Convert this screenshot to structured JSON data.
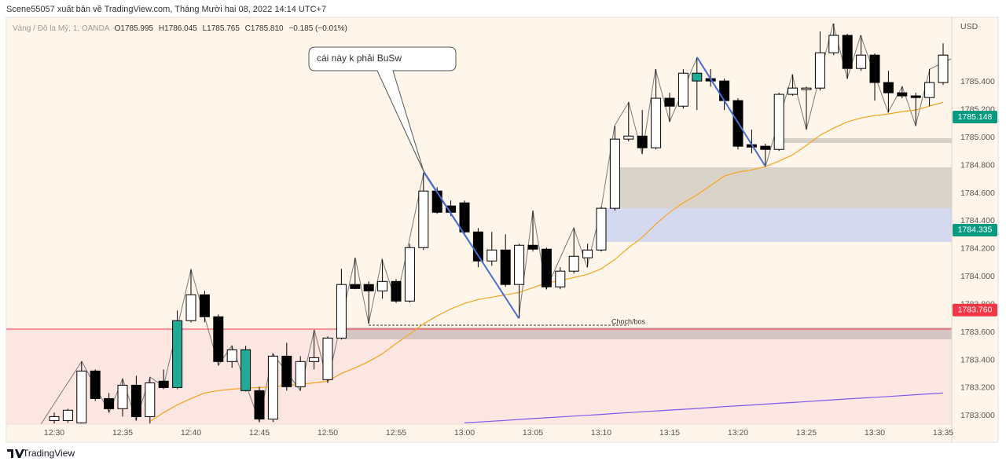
{
  "header": {
    "publisher": "Scene55057 xuất bản về TradingView.com, Tháng Mười hai 08, 2022 14:14 UTC+7"
  },
  "legend": {
    "symbol": "Vàng / Đô la Mỹ, 1, OANDA",
    "values": [
      "O1785.995",
      "H1786.045",
      "L1785.765",
      "C1785.810",
      "−0.185 (−0.01%)"
    ]
  },
  "footer": {
    "brand": "TradingView"
  },
  "chart_data": {
    "type": "candlestick",
    "currency": "USD",
    "annotations": [
      "cái này k phải BuSw",
      "Choch/bos"
    ],
    "grid": false,
    "categories": [
      "12:30",
      null,
      null,
      null,
      null,
      "12:35",
      null,
      null,
      null,
      null,
      "12:40",
      null,
      null,
      null,
      null,
      "12:45",
      null,
      null,
      null,
      null,
      "12:50",
      null,
      null,
      null,
      null,
      "12:55",
      null,
      null,
      null,
      null,
      "13:00",
      null,
      null,
      null,
      null,
      "13:05",
      null,
      null,
      null,
      null,
      "13:10",
      null,
      null,
      null,
      null,
      "13:15",
      null,
      null,
      null,
      null,
      "13:20",
      null,
      null,
      null,
      null,
      "13:25",
      null,
      null,
      null,
      null,
      "13:30",
      null,
      null,
      null,
      null,
      "13:35"
    ],
    "ylim": [
      1782.94,
      1785.865
    ],
    "yticks": [
      {
        "value": 1783.0,
        "label": "1783.000"
      },
      {
        "value": 1783.2,
        "label": "1783.200"
      },
      {
        "value": 1783.4,
        "label": "1783.400"
      },
      {
        "value": 1783.6,
        "label": "1783.600"
      },
      {
        "value": 1783.8,
        "label": "1783.800"
      },
      {
        "value": 1784.0,
        "label": "1784.000"
      },
      {
        "value": 1784.2,
        "label": "1784.200"
      },
      {
        "value": 1784.4,
        "label": "1784.400"
      },
      {
        "value": 1784.6,
        "label": "1784.600"
      },
      {
        "value": 1784.8,
        "label": "1784.800"
      },
      {
        "value": 1785.0,
        "label": "1785.000"
      },
      {
        "value": 1785.2,
        "label": "1785.200"
      },
      {
        "value": 1785.4,
        "label": "1785.400"
      }
    ],
    "candles": {
      "open": [
        1782.966,
        1782.966,
        1782.949,
        1783.322,
        1783.124,
        1783.051,
        1783.22,
        1782.994,
        1783.249,
        1783.203,
        1783.684,
        1783.87,
        1783.712,
        1783.39,
        1783.475,
        1783.181,
        1782.977,
        1783.429,
        1783.209,
        1783.39,
        1783.26,
        1783.559,
        1783.944,
        1783.944,
        1783.898,
        1783.966,
        1783.825,
        1784.209,
        1784.616,
        1784.509,
        1784.531,
        1784.322,
        1784.113,
        1784.192,
        1783.944,
        1784.226,
        1784.198,
        1783.927,
        1784.04,
        1784.136,
        1784.192,
        1784.492,
        1784.989,
        1785.011,
        1784.927,
        1785.283,
        1785.226,
        1785.407,
        1785.424,
        1785.407,
        1785.266,
        1784.949,
        1784.938,
        1784.915,
        1785.311,
        1785.345,
        1785.356,
        1785.61,
        1785.735,
        1785.497,
        1785.593,
        1785.396,
        1785.322,
        1785.3,
        1785.288,
        1785.396
      ],
      "high": [
        1783.023,
        1783.051,
        1783.39,
        1783.333,
        1783.164,
        1783.266,
        1783.288,
        1783.277,
        1783.333,
        1783.757,
        1784.051,
        1783.898,
        1783.729,
        1783.503,
        1783.503,
        1783.209,
        1783.446,
        1783.525,
        1783.429,
        1783.616,
        1783.571,
        1784.057,
        1784.136,
        1783.966,
        1784.124,
        1783.983,
        1784.237,
        1784.746,
        1784.644,
        1784.548,
        1784.548,
        1784.35,
        1784.322,
        1784.305,
        1784.237,
        1784.475,
        1784.209,
        1784.068,
        1784.35,
        1784.237,
        1784.503,
        1785.085,
        1785.254,
        1785.198,
        1785.492,
        1785.322,
        1785.492,
        1785.576,
        1785.492,
        1785.424,
        1785.283,
        1785.057,
        1784.955,
        1785.322,
        1785.452,
        1785.367,
        1785.763,
        1785.819,
        1785.746,
        1785.735,
        1785.605,
        1785.48,
        1785.367,
        1785.322,
        1785.492,
        1785.678
      ],
      "low": [
        1782.945,
        1782.949,
        1782.945,
        1783.107,
        1783.023,
        1782.994,
        1782.966,
        1782.945,
        1783.192,
        1783.192,
        1783.672,
        1783.672,
        1783.362,
        1783.345,
        1783.175,
        1782.955,
        1782.955,
        1783.181,
        1783.181,
        1783.333,
        1783.237,
        1783.548,
        1783.91,
        1783.661,
        1783.842,
        1783.814,
        1783.814,
        1784.192,
        1784.452,
        1784.435,
        1784.294,
        1784.068,
        1784.079,
        1783.927,
        1783.701,
        1784.181,
        1783.91,
        1783.91,
        1784.023,
        1784.068,
        1784.181,
        1784.475,
        1784.972,
        1784.881,
        1784.915,
        1785.113,
        1785.209,
        1785.198,
        1785.367,
        1785.198,
        1784.915,
        1784.887,
        1784.791,
        1784.904,
        1785.3,
        1785.057,
        1785.339,
        1785.593,
        1785.424,
        1785.48,
        1785.266,
        1785.181,
        1785.283,
        1785.085,
        1785.226,
        1785.379
      ],
      "close": [
        1782.994,
        1783.04,
        1783.322,
        1783.124,
        1783.051,
        1783.22,
        1782.994,
        1783.237,
        1783.203,
        1783.684,
        1783.87,
        1783.712,
        1783.39,
        1783.475,
        1783.181,
        1782.977,
        1783.429,
        1783.209,
        1783.39,
        1783.418,
        1783.559,
        1783.944,
        1783.915,
        1783.898,
        1783.966,
        1783.825,
        1784.209,
        1784.616,
        1784.463,
        1784.463,
        1784.322,
        1784.113,
        1784.192,
        1783.944,
        1784.226,
        1784.198,
        1783.927,
        1784.04,
        1784.147,
        1784.192,
        1784.492,
        1784.989,
        1785.011,
        1784.927,
        1785.283,
        1785.226,
        1785.463,
        1785.463,
        1785.407,
        1785.266,
        1784.938,
        1784.932,
        1784.915,
        1785.311,
        1785.356,
        1785.356,
        1785.61,
        1785.735,
        1785.497,
        1785.593,
        1785.396,
        1785.322,
        1785.3,
        1785.288,
        1785.396,
        1785.593
      ],
      "colors": [
        "#ffffff",
        "#ffffff",
        "#ffffff",
        "#000000",
        "#000000",
        "#ffffff",
        "#000000",
        "#ffffff",
        "#000000",
        "#22ab94",
        "#ffffff",
        "#000000",
        "#000000",
        "#ffffff",
        "#22ab94",
        "#000000",
        "#ffffff",
        "#000000",
        "#ffffff",
        "#ffffff",
        "#ffffff",
        "#ffffff",
        "#000000",
        "#000000",
        "#ffffff",
        "#000000",
        "#ffffff",
        "#ffffff",
        "#000000",
        "#000000",
        "#000000",
        "#000000",
        "#ffffff",
        "#000000",
        "#ffffff",
        "#000000",
        "#000000",
        "#ffffff",
        "#ffffff",
        "#ffffff",
        "#ffffff",
        "#ffffff",
        "#ffffff",
        "#000000",
        "#ffffff",
        "#000000",
        "#ffffff",
        "#22ab94",
        "#000000",
        "#000000",
        "#000000",
        "#000000",
        "#000000",
        "#ffffff",
        "#ffffff",
        "#ffffff",
        "#ffffff",
        "#ffffff",
        "#000000",
        "#ffffff",
        "#000000",
        "#000000",
        "#000000",
        "#000000",
        "#ffffff",
        "#ffffff"
      ]
    },
    "lines": [
      {
        "color": "#f7a21b",
        "values": [
          null,
          null,
          null,
          null,
          null,
          null,
          null,
          1782.96,
          1783.023,
          1783.079,
          1783.124,
          1783.164,
          1783.181,
          1783.192,
          1783.198,
          1783.203,
          1783.209,
          1783.22,
          1783.226,
          1783.237,
          1783.249,
          1783.305,
          1783.345,
          1783.39,
          1783.446,
          1783.52,
          1783.588,
          1783.661,
          1783.718,
          1783.768,
          1783.808,
          1783.836,
          1783.853,
          1783.87,
          1783.887,
          1783.921,
          1783.955,
          1783.972,
          1783.994,
          1784.017,
          1784.057,
          1784.124,
          1784.209,
          1784.283,
          1784.379,
          1784.463,
          1784.531,
          1784.588,
          1784.655,
          1784.723,
          1784.752,
          1784.768,
          1784.791,
          1784.831,
          1784.876,
          1784.944,
          1785.017,
          1785.068,
          1785.113,
          1785.141,
          1785.158,
          1785.17,
          1785.187,
          1785.198,
          1785.226,
          1785.254
        ]
      },
      {
        "color": "#7e57f2",
        "values": [
          null,
          null,
          null,
          null,
          null,
          null,
          null,
          null,
          null,
          null,
          null,
          null,
          null,
          null,
          null,
          null,
          null,
          null,
          null,
          null,
          null,
          null,
          null,
          null,
          null,
          null,
          null,
          null,
          null,
          null,
          1782.949,
          1782.955,
          1782.961,
          1782.967,
          1782.974,
          1782.98,
          1782.986,
          1782.992,
          1782.998,
          1783.004,
          1783.01,
          1783.017,
          1783.023,
          1783.029,
          1783.035,
          1783.041,
          1783.047,
          1783.053,
          1783.059,
          1783.066,
          1783.072,
          1783.078,
          1783.084,
          1783.09,
          1783.096,
          1783.102,
          1783.109,
          1783.115,
          1783.121,
          1783.127,
          1783.133,
          1783.139,
          1783.145,
          1783.152,
          1783.158,
          1783.164
        ]
      }
    ],
    "price_markers": [
      {
        "value": 1785.148,
        "label": "1785.148",
        "color": "#089981"
      },
      {
        "value": 1784.335,
        "label": "1784.335",
        "color": "#089981"
      },
      {
        "value": 1783.76,
        "label": "1783.760",
        "color": "#f23645"
      }
    ]
  }
}
